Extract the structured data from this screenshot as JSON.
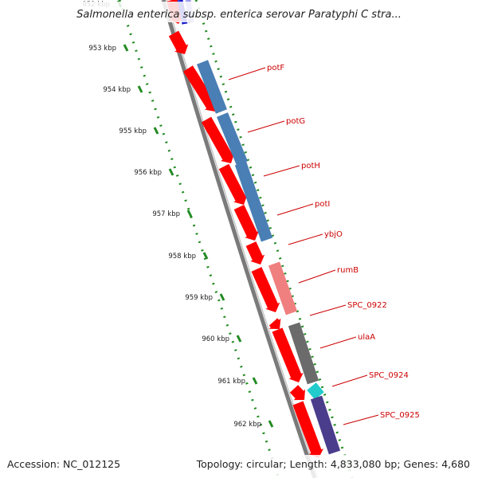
{
  "title": "Salmonella enterica subsp. enterica serovar Paratyphi C stra...",
  "footer": {
    "accession": "Accession: NC_012125",
    "summary": "Topology: circular; Length: 4,833,080 bp; Genes: 4,680"
  },
  "ruler": {
    "ticks": [
      {
        "label": "952 kbp"
      },
      {
        "label": "953 kbp"
      },
      {
        "label": "954 kbp"
      },
      {
        "label": "955 kbp"
      },
      {
        "label": "956 kbp"
      },
      {
        "label": "957 kbp"
      },
      {
        "label": "958 kbp"
      },
      {
        "label": "959 kbp"
      },
      {
        "label": "960 kbp"
      },
      {
        "label": "961 kbp"
      },
      {
        "label": "962 kbp"
      }
    ]
  },
  "genes": [
    {
      "name": "potF",
      "color": "#4a7fb5"
    },
    {
      "name": "potG",
      "color": "#4a7fb5"
    },
    {
      "name": "potH",
      "color": "#4a7fb5"
    },
    {
      "name": "potI",
      "color": "#4a7fb5"
    },
    {
      "name": "ybjO",
      "color": "#4a7fb5"
    },
    {
      "name": "rumB",
      "color": "#f08080"
    },
    {
      "name": "SPC_0922",
      "color": "#6b6b6b"
    },
    {
      "name": "ulaA",
      "color": "#6b6b6b"
    },
    {
      "name": "SPC_0924",
      "color": "#22cccc"
    },
    {
      "name": "SPC_0925",
      "color": "#4a3d8c"
    }
  ],
  "colors": {
    "cds_arrow": "#ff0000",
    "label_red": "#cc0000",
    "ruler_green": "#228b22",
    "backbone": "#7a7a7a"
  }
}
